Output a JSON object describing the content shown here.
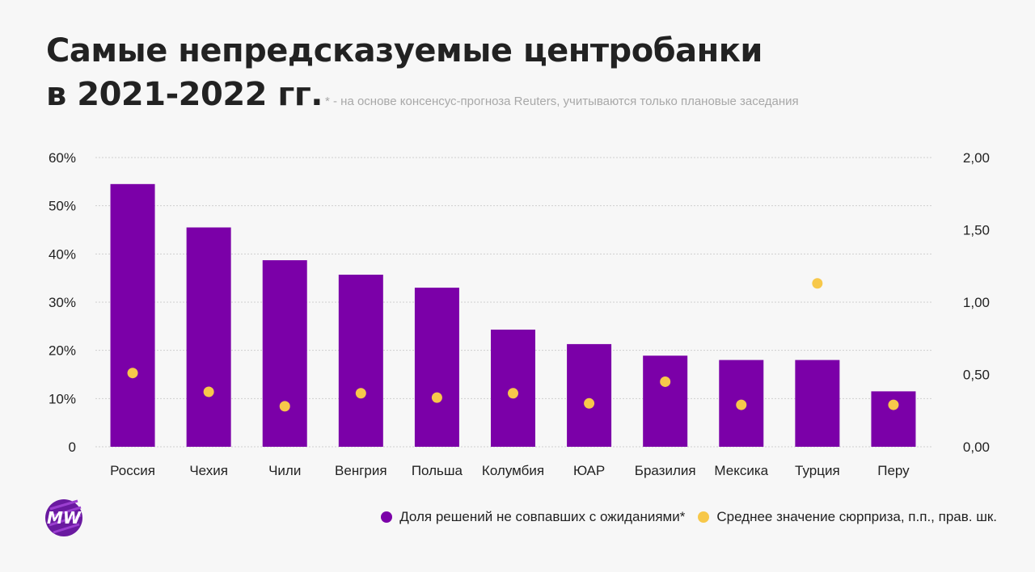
{
  "title_line1": "Самые непредсказуемые центробанки",
  "title_line2": "в 2021-2022 гг.",
  "note": "* - на основе консенсус-прогноза Reuters, учитываются только плановые заседания",
  "colors": {
    "bar": "#7b00a8",
    "dot": "#f7c84a",
    "grid": "#cfcfcf"
  },
  "logo_icon": "mw-logo-icon",
  "legend": {
    "bar_label": "Доля решений не совпавших с ожиданиями*",
    "dot_label": "Среднее значение сюрприза, п.п., прав. шк."
  },
  "chart_data": {
    "type": "bar",
    "title": "Самые непредсказуемые центробанки в 2021-2022 гг.",
    "categories": [
      "Россия",
      "Чехия",
      "Чили",
      "Венгрия",
      "Польша",
      "Колумбия",
      "ЮАР",
      "Бразилия",
      "Мексика",
      "Турция",
      "Перу"
    ],
    "series": [
      {
        "name": "Доля решений не совпавших с ожиданиями*",
        "type": "bar",
        "axis": "left",
        "values": [
          54.5,
          45.5,
          38.7,
          35.7,
          33.0,
          24.3,
          21.3,
          18.9,
          18.0,
          18.0,
          11.5
        ]
      },
      {
        "name": "Среднее значение сюрприза, п.п., прав. шк.",
        "type": "scatter",
        "axis": "right",
        "values": [
          0.51,
          0.38,
          0.28,
          0.37,
          0.34,
          0.37,
          0.3,
          0.45,
          0.29,
          1.13,
          0.29
        ]
      }
    ],
    "ylim_left": [
      0,
      60
    ],
    "yticks_left": [
      "0",
      "10%",
      "20%",
      "30%",
      "40%",
      "50%",
      "60%"
    ],
    "ylim_right": [
      0,
      2
    ],
    "yticks_right": [
      "0,00",
      "0,50",
      "1,00",
      "1,50",
      "2,00"
    ],
    "grid": true,
    "legend_position": "bottom-right"
  }
}
